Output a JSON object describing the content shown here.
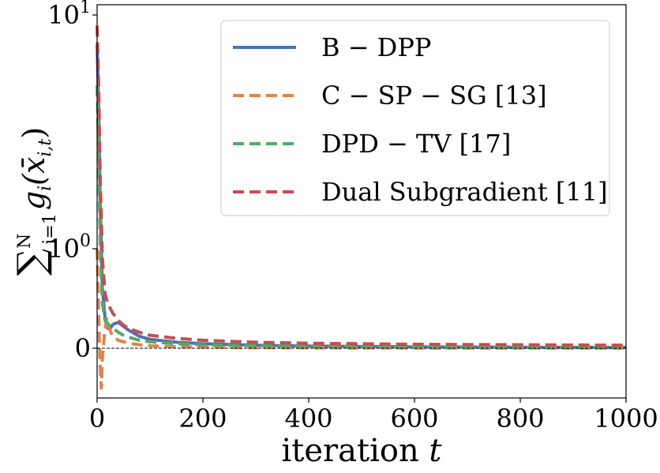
{
  "chart_data": {
    "type": "line",
    "xlabel": "iteration",
    "xlabel_var": "t",
    "ylabel": "∑ g(x̄)",
    "ylabel_parts": {
      "sum": "∑",
      "sup": "N",
      "sub": "i=1",
      "expr": "g",
      "expr_sub": "i",
      "arg": "(x̄",
      "arg_sub": "i,t",
      "close": ")"
    },
    "xlim": [
      0,
      1000
    ],
    "yscale": "symlog",
    "x_ticks": [
      {
        "value": 0,
        "label": "0"
      },
      {
        "value": 200,
        "label": "200"
      },
      {
        "value": 400,
        "label": "400"
      },
      {
        "value": 600,
        "label": "600"
      },
      {
        "value": 800,
        "label": "800"
      },
      {
        "value": 1000,
        "label": "1000"
      }
    ],
    "y_ticks": [
      {
        "value": 0,
        "label": "0",
        "base": "0",
        "exp": ""
      },
      {
        "value": 1,
        "label": "10^0",
        "base": "10",
        "exp": "0"
      },
      {
        "value": 10,
        "label": "10^1",
        "base": "10",
        "exp": "1"
      }
    ],
    "zero_line": true,
    "legend_position": "top-right",
    "series": [
      {
        "name": "B − DPP",
        "color": "#4c72b0",
        "dash": "solid",
        "x": [
          0,
          3,
          6,
          10,
          15,
          20,
          25,
          30,
          40,
          50,
          60,
          80,
          100,
          150,
          200,
          300,
          400,
          600,
          800,
          1000
        ],
        "y": [
          7.5,
          4.0,
          1.5,
          0.6,
          0.3,
          0.2,
          0.2,
          0.24,
          0.26,
          0.22,
          0.18,
          0.12,
          0.09,
          0.06,
          0.045,
          0.03,
          0.022,
          0.014,
          0.01,
          0.008
        ]
      },
      {
        "name": "C − SP − SG [13]",
        "color": "#dd8452",
        "dash": "dashed",
        "x": [
          0,
          2,
          4,
          6,
          8,
          10,
          14,
          18,
          22,
          26,
          30,
          40,
          60,
          80,
          100,
          150,
          200,
          300,
          400,
          600,
          800,
          1000
        ],
        "y": [
          1.0,
          0.6,
          0.1,
          -0.2,
          -0.4,
          -0.1,
          0.15,
          0.3,
          0.22,
          0.16,
          0.12,
          0.08,
          0.05,
          0.035,
          0.025,
          0.015,
          0.01,
          0.006,
          0.004,
          0.002,
          0.0015,
          0.001
        ]
      },
      {
        "name": "DPD − TV [17]",
        "color": "#55a868",
        "dash": "dashed",
        "x": [
          0,
          3,
          6,
          10,
          15,
          20,
          25,
          30,
          40,
          50,
          60,
          80,
          100,
          150,
          200,
          300,
          400,
          600,
          800,
          1000
        ],
        "y": [
          5.0,
          2.5,
          1.0,
          0.45,
          0.28,
          0.25,
          0.22,
          0.2,
          0.16,
          0.13,
          0.11,
          0.08,
          0.065,
          0.045,
          0.035,
          0.025,
          0.018,
          0.012,
          0.009,
          0.007
        ]
      },
      {
        "name": "Dual Subgradient [11]",
        "color": "#c44e52",
        "dash": "dashed",
        "x": [
          0,
          3,
          6,
          10,
          15,
          20,
          30,
          40,
          50,
          60,
          80,
          100,
          150,
          200,
          300,
          400,
          600,
          800,
          1000
        ],
        "y": [
          9.0,
          5.0,
          2.0,
          0.9,
          0.55,
          0.45,
          0.35,
          0.28,
          0.23,
          0.2,
          0.16,
          0.13,
          0.1,
          0.08,
          0.06,
          0.05,
          0.04,
          0.035,
          0.03
        ]
      }
    ]
  }
}
